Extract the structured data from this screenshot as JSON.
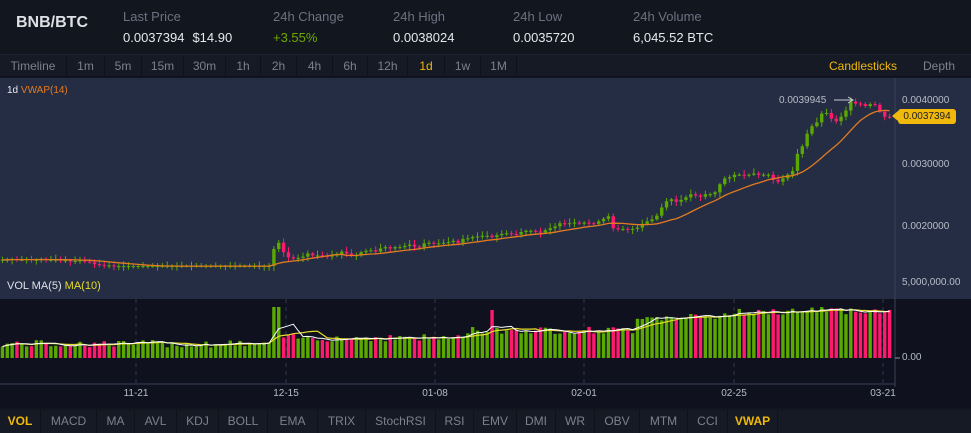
{
  "header": {
    "pair": "BNB/BTC",
    "stats": [
      {
        "label": "Last Price",
        "value": "0.0037394",
        "usd": "$14.90"
      },
      {
        "label": "24h Change",
        "value": "+3.55%",
        "direction": "up"
      },
      {
        "label": "24h High",
        "value": "0.0038024"
      },
      {
        "label": "24h Low",
        "value": "0.0035720"
      },
      {
        "label": "24h Volume",
        "value": "6,045.52 BTC"
      }
    ]
  },
  "timeframes": {
    "items": [
      "Timeline",
      "1m",
      "5m",
      "15m",
      "30m",
      "1h",
      "2h",
      "4h",
      "6h",
      "12h",
      "1d",
      "1w",
      "1M"
    ],
    "active": "1d"
  },
  "views": {
    "items": [
      "Candlesticks",
      "Depth"
    ],
    "active": "Candlesticks"
  },
  "legend": {
    "interval": "1d",
    "indicator": "VWAP(14)"
  },
  "vol_legend": {
    "vol_ma": "VOL MA(5)",
    "ma10": "MA(10)"
  },
  "price_axis": [
    "0.0040000",
    "0.0030000",
    "0.0020000"
  ],
  "vol_axis": [
    "5,000,000.00",
    "0.00"
  ],
  "last_price_tag": "0.0037394",
  "high_marker": "0.0039945",
  "x_labels": [
    "11-21",
    "12-15",
    "01-08",
    "02-01",
    "02-25",
    "03-21"
  ],
  "indicators": {
    "items": [
      "VOL",
      "MACD",
      "MA",
      "AVL",
      "KDJ",
      "BOLL",
      "EMA",
      "TRIX",
      "StochRSI",
      "RSI",
      "EMV",
      "DMI",
      "WR",
      "OBV",
      "MTM",
      "CCI",
      "VWAP"
    ],
    "active": [
      "VOL",
      "VWAP"
    ]
  },
  "colors": {
    "up": "#5aa800",
    "down": "#ff1a6e",
    "vwap": "#e27b20",
    "ma5": "#ffffff",
    "ma10": "#e6dc2a",
    "accent": "#f0b90b"
  },
  "chart_data": {
    "type": "candlestick",
    "title": "BNB/BTC 1d",
    "x_ticks": [
      "11-21",
      "12-15",
      "01-08",
      "02-01",
      "02-25",
      "03-21"
    ],
    "y_ticks": [
      0.002,
      0.003,
      0.004
    ],
    "ylim": [
      0.00145,
      0.00415
    ],
    "volume_ylim": [
      0,
      5000000
    ],
    "series": [
      {
        "name": "close",
        "values": [
          0.00148,
          0.00148,
          0.00149,
          0.00148,
          0.00148,
          0.00149,
          0.00148,
          0.00148,
          0.00149,
          0.00148,
          0.00148,
          0.00148,
          0.00147,
          0.00147,
          0.00146,
          0.00146,
          0.00147,
          0.00145,
          0.00144,
          0.00141,
          0.0014,
          0.00139,
          0.00139,
          0.00138,
          0.00138,
          0.00138,
          0.00138,
          0.00138,
          0.00138,
          0.00138,
          0.00138,
          0.00138,
          0.00138,
          0.00138,
          0.00138,
          0.00138,
          0.00138,
          0.00138,
          0.00138,
          0.00138,
          0.00138,
          0.00138,
          0.00138,
          0.00138,
          0.00138,
          0.00138,
          0.00138,
          0.00138,
          0.00138,
          0.00138,
          0.00138,
          0.00138,
          0.00138,
          0.00138,
          0.00138,
          0.00138,
          0.00165,
          0.00175,
          0.0016,
          0.00152,
          0.0015,
          0.00151,
          0.00153,
          0.00158,
          0.00155,
          0.00155,
          0.00154,
          0.00153,
          0.00155,
          0.00156,
          0.00161,
          0.00158,
          0.00155,
          0.00155,
          0.0016,
          0.00162,
          0.00163,
          0.00161,
          0.00166,
          0.00168,
          0.00166,
          0.00168,
          0.00168,
          0.0017,
          0.00172,
          0.00169,
          0.00168,
          0.00174,
          0.00175,
          0.00174,
          0.00174,
          0.00175,
          0.00176,
          0.00178,
          0.00175,
          0.00181,
          0.00182,
          0.00184,
          0.00185,
          0.00186,
          0.00186,
          0.00184,
          0.00187,
          0.00189,
          0.0019,
          0.00189,
          0.00188,
          0.00192,
          0.00194,
          0.00194,
          0.00193,
          0.00191,
          0.00195,
          0.00198,
          0.00201,
          0.00206,
          0.00205,
          0.00206,
          0.00207,
          0.00206,
          0.00207,
          0.00206,
          0.00205,
          0.00209,
          0.00213,
          0.00217,
          0.00198,
          0.00197,
          0.00197,
          0.00196,
          0.00197,
          0.00199,
          0.00205,
          0.00209,
          0.00212,
          0.00218,
          0.00231,
          0.00241,
          0.00244,
          0.0024,
          0.00243,
          0.00247,
          0.00252,
          0.0025,
          0.00248,
          0.00252,
          0.00252,
          0.00255,
          0.00268,
          0.00277,
          0.00279,
          0.00283,
          0.00283,
          0.00282,
          0.00283,
          0.00285,
          0.00283,
          0.00283,
          0.00283,
          0.00275,
          0.00272,
          0.00277,
          0.00283,
          0.00289,
          0.00316,
          0.00328,
          0.00348,
          0.0036,
          0.00366,
          0.0038,
          0.00381,
          0.00372,
          0.00368,
          0.00375,
          0.00385,
          0.00399,
          0.00396,
          0.00395,
          0.00392,
          0.00395,
          0.00394,
          0.00383,
          0.00375,
          0.00374
        ]
      },
      {
        "name": "volume",
        "note": "approximate, scaled to 0-5,000,000"
      }
    ]
  }
}
